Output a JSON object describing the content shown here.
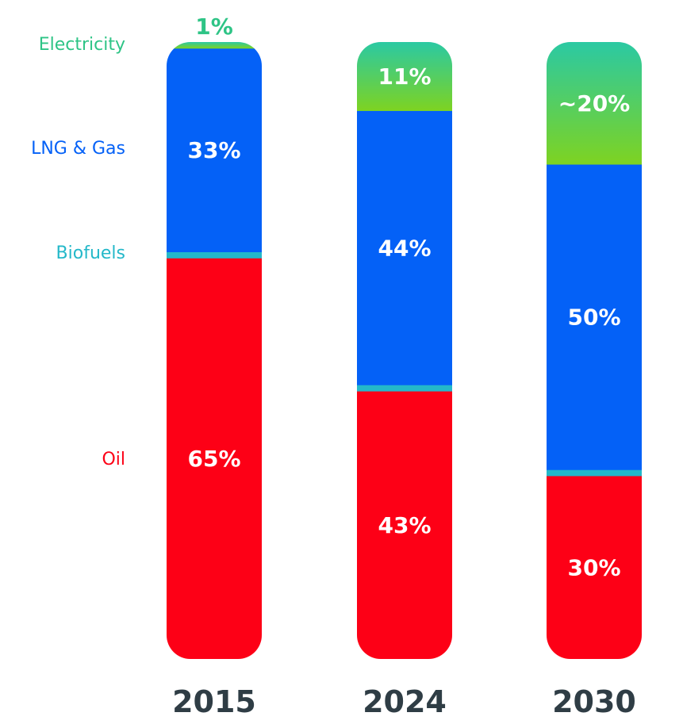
{
  "colors": {
    "electricity_top": "#2bc9a3",
    "electricity_bottom": "#7ed321",
    "gas": "#0461f7",
    "biofuels": "#24b8c9",
    "oil": "#fd0016",
    "year_text": "#2f3d45",
    "electricity_legend": "#2ec486",
    "gas_legend": "#0461f7",
    "biofuels_legend": "#24b8c9",
    "oil_legend": "#fd0016"
  },
  "chart_data": {
    "type": "bar",
    "stacked": true,
    "orientation": "vertical",
    "unit": "%",
    "categories": [
      "2015",
      "2024",
      "2030"
    ],
    "series": [
      {
        "name": "Oil",
        "values": [
          65,
          43,
          30
        ],
        "labels": [
          "65%",
          "43%",
          "30%"
        ]
      },
      {
        "name": "Biofuels",
        "values": [
          1,
          1,
          1
        ],
        "labels": [
          "",
          "",
          ""
        ]
      },
      {
        "name": "LNG & Gas",
        "values": [
          33,
          44,
          50
        ],
        "labels": [
          "33%",
          "44%",
          "50%"
        ]
      },
      {
        "name": "Electricity",
        "values": [
          1,
          11,
          20
        ],
        "labels": [
          "1%",
          "11%",
          "~20%"
        ]
      }
    ],
    "legend_position": "left",
    "legend": [
      "Electricity",
      "LNG & Gas",
      "Biofuels",
      "Oil"
    ],
    "xlabel": "",
    "ylabel": "",
    "grid": false
  }
}
